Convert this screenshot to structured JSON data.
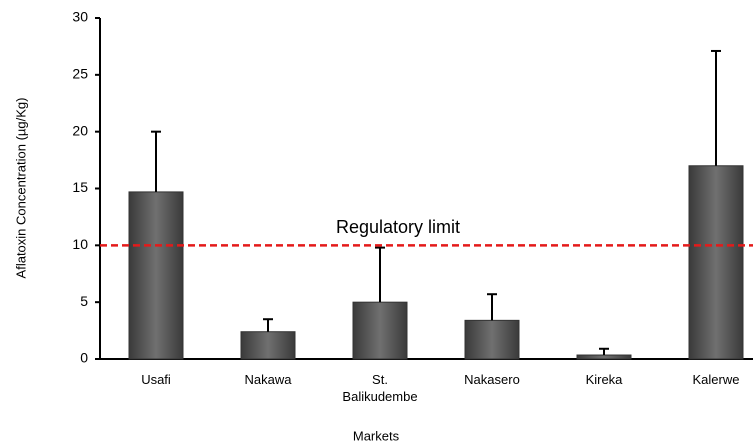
{
  "chart_data": {
    "type": "bar",
    "x_label": "Markets",
    "y_label": "Aflatoxin Concentration (µg/Kg)",
    "categories": [
      "Usafi",
      "Nakawa",
      "St. Balikudembe",
      "Nakasero",
      "Kireka",
      "Kalerwe"
    ],
    "values": [
      14.7,
      2.4,
      5.0,
      3.4,
      0.35,
      17.0
    ],
    "errors": [
      5.3,
      1.1,
      4.8,
      2.3,
      0.55,
      10.1
    ],
    "color": "#5f5f5f",
    "ylim": [
      0,
      30
    ],
    "yticks": [
      0,
      5,
      10,
      15,
      20,
      25,
      30
    ],
    "reference_line": {
      "value": 10,
      "label": "Regulatory limit",
      "color": "#e41a1a"
    }
  }
}
